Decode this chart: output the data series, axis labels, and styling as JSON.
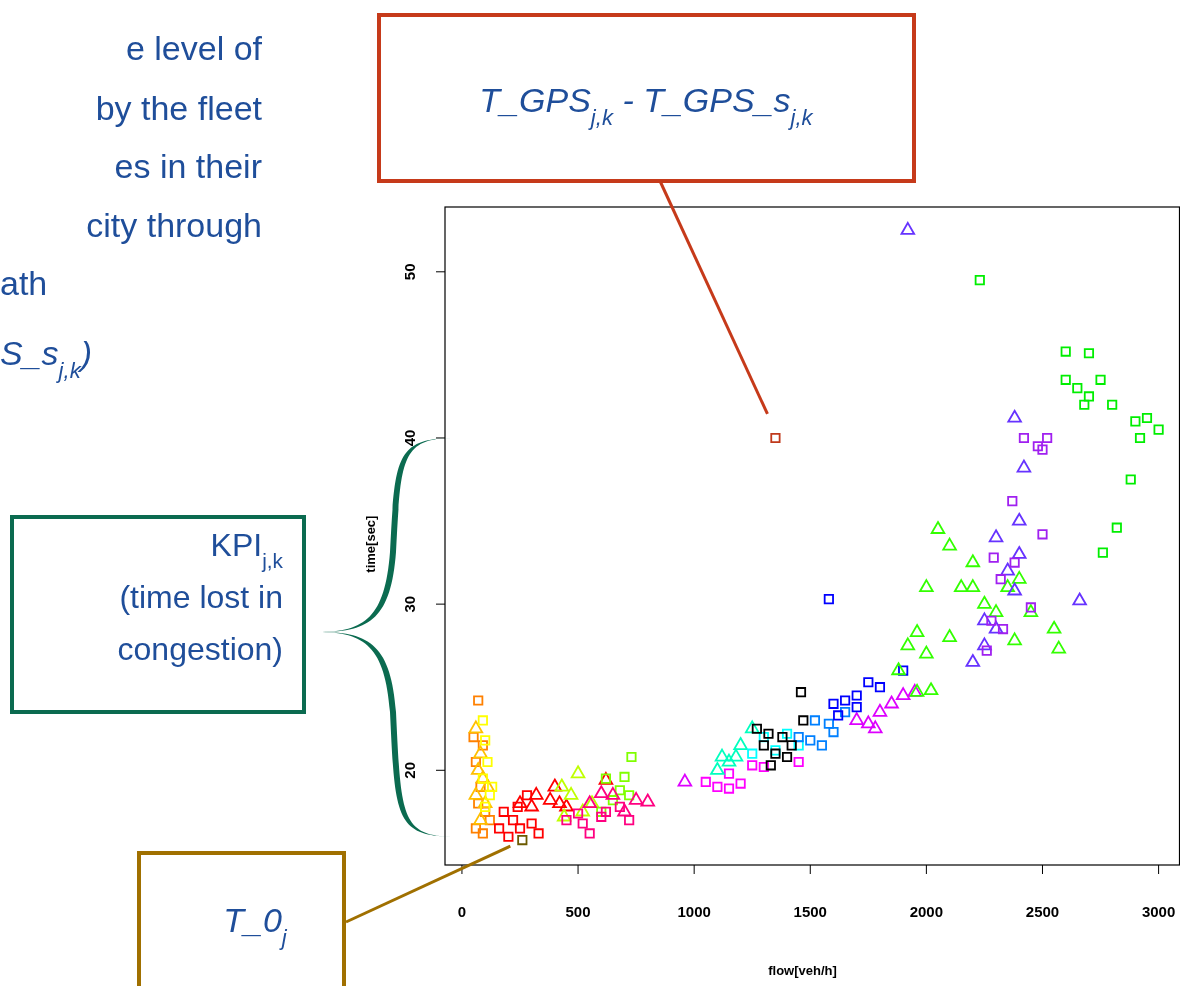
{
  "chart_data": {
    "type": "scatter",
    "xlabel": "flow[veh/h]",
    "ylabel": "time[sec]",
    "xlim": [
      -73,
      3090
    ],
    "ylim": [
      14.3,
      53.9
    ],
    "xticks": [
      0,
      500,
      1000,
      1500,
      2000,
      2500,
      3000
    ],
    "yticks": [
      20,
      30,
      40,
      50
    ],
    "series": [
      {
        "color": "#ff8000",
        "marker": "square",
        "x": [
          70,
          90,
          60,
          80,
          70,
          100,
          60,
          90,
          120,
          50
        ],
        "values": [
          24.2,
          21.5,
          20.5,
          19,
          18,
          17.5,
          16.5,
          16.2,
          17,
          22
        ]
      },
      {
        "color": "#ffbf00",
        "marker": "triangle",
        "x": [
          60,
          80,
          70,
          90,
          60,
          100,
          80,
          110
        ],
        "values": [
          22.5,
          21,
          20,
          19.5,
          18.5,
          18,
          17,
          19
        ]
      },
      {
        "color": "#ffff00",
        "marker": "square",
        "x": [
          90,
          100,
          110,
          90,
          120,
          100,
          130
        ],
        "values": [
          23,
          21.8,
          20.5,
          19.5,
          18.5,
          17.8,
          19
        ]
      },
      {
        "color": "#ff0000",
        "marker": "square",
        "x": [
          180,
          220,
          250,
          200,
          300,
          280,
          160,
          330,
          240
        ],
        "values": [
          17.5,
          17,
          16.5,
          16,
          16.8,
          18.5,
          16.5,
          16.2,
          17.8
        ]
      },
      {
        "color": "#ff0000",
        "marker": "triangle",
        "x": [
          320,
          380,
          420,
          300,
          400,
          620,
          250,
          450
        ],
        "values": [
          18.5,
          18.2,
          18,
          17.8,
          19,
          19.4,
          18,
          17.8
        ]
      },
      {
        "color": "#bfff00",
        "marker": "triangle",
        "x": [
          430,
          470,
          500,
          520,
          440,
          560
        ],
        "values": [
          19,
          18.5,
          19.8,
          17.5,
          17.2,
          18
        ]
      },
      {
        "color": "#80ff00",
        "marker": "square",
        "x": [
          620,
          700,
          730,
          680,
          650,
          720,
          600
        ],
        "values": [
          19.5,
          19.6,
          20.8,
          18.8,
          18.2,
          18.5,
          17.5
        ]
      },
      {
        "color": "#ff0080",
        "marker": "square",
        "x": [
          450,
          520,
          600,
          680,
          550,
          620,
          500,
          720
        ],
        "values": [
          17,
          16.8,
          17.2,
          17.8,
          16.2,
          17.5,
          17.4,
          17
        ]
      },
      {
        "color": "#ff0080",
        "marker": "triangle",
        "x": [
          650,
          750,
          800,
          550,
          700,
          600
        ],
        "values": [
          18.5,
          18.2,
          18.1,
          18,
          17.5,
          18.6
        ]
      },
      {
        "color": "#ff00ff",
        "marker": "square",
        "x": [
          1050,
          1100,
          1150,
          1200,
          1250,
          1300,
          1150,
          1450
        ],
        "values": [
          19.3,
          19,
          19.8,
          19.2,
          20.3,
          20.2,
          18.9,
          20.5
        ]
      },
      {
        "color": "#dd00ff",
        "marker": "triangle",
        "x": [
          960,
          1750,
          1800,
          1850,
          1700,
          1780,
          1900,
          1950
        ],
        "values": [
          19.3,
          22.8,
          23.5,
          24,
          23,
          22.5,
          24.5,
          24.7
        ]
      },
      {
        "color": "#00ffbf",
        "marker": "triangle",
        "x": [
          1100,
          1150,
          1200,
          1250,
          1180,
          1120
        ],
        "values": [
          20,
          20.5,
          21.5,
          22.5,
          20.8,
          20.8
        ]
      },
      {
        "color": "#00ffff",
        "marker": "square",
        "x": [
          1300,
          1350,
          1400,
          1250,
          1450
        ],
        "values": [
          22,
          21.2,
          22.2,
          21,
          21.5
        ]
      },
      {
        "color": "#0080ff",
        "marker": "square",
        "x": [
          1450,
          1500,
          1550,
          1600,
          1520,
          1650,
          1580
        ],
        "values": [
          22,
          21.8,
          21.5,
          22.3,
          23,
          23.5,
          22.8
        ]
      },
      {
        "color": "#0000ff",
        "marker": "square",
        "x": [
          1600,
          1650,
          1700,
          1750,
          1620,
          1580,
          1900,
          1700,
          1800
        ],
        "values": [
          24,
          24.2,
          24.5,
          25.3,
          23.3,
          30.3,
          26,
          23.8,
          25
        ]
      },
      {
        "color": "#000000",
        "marker": "square",
        "x": [
          1270,
          1300,
          1350,
          1380,
          1400,
          1330,
          1420,
          1460,
          1470,
          1320
        ],
        "values": [
          22.5,
          21.5,
          21,
          22,
          20.8,
          20.3,
          21.5,
          24.7,
          23,
          22.2
        ]
      },
      {
        "color": "#33ff00",
        "marker": "triangle",
        "x": [
          1880,
          1920,
          1960,
          2000,
          2050,
          2100,
          2000,
          2150,
          2200,
          2250,
          2300,
          2350,
          2400,
          2450,
          2550,
          2570,
          1960,
          2020,
          2100,
          2200,
          2380
        ],
        "values": [
          26,
          27.5,
          28.3,
          27,
          34.5,
          33.5,
          31,
          31,
          32.5,
          30,
          29.5,
          31,
          31.5,
          29.5,
          28.5,
          27.3,
          24.7,
          24.8,
          28,
          31,
          27.8
        ]
      },
      {
        "color": "#6633ff",
        "marker": "triangle",
        "x": [
          1920,
          2380,
          2420,
          2400,
          2300,
          2350,
          2400,
          2380,
          2250,
          2300,
          2660,
          2200,
          2250
        ],
        "values": [
          52.5,
          41.2,
          38.2,
          35,
          34,
          32,
          33,
          30.8,
          29,
          28.5,
          30.2,
          26.5,
          27.5
        ]
      },
      {
        "color": "#a020f0",
        "marker": "square",
        "x": [
          2370,
          2420,
          2480,
          2500,
          2520,
          2290,
          2380,
          2320,
          2280,
          2500,
          2260,
          2330,
          2450
        ],
        "values": [
          36.2,
          40,
          39.5,
          39.3,
          40,
          32.8,
          32.5,
          31.5,
          29,
          34.2,
          27.2,
          28.5,
          29.8
        ]
      },
      {
        "color": "#00ee00",
        "marker": "square",
        "x": [
          2230,
          2600,
          2700,
          2600,
          2650,
          2700,
          2750,
          2800,
          2680,
          2900,
          2950,
          3000,
          2920,
          2880,
          2820,
          2760
        ],
        "values": [
          49.5,
          45.2,
          45.1,
          43.5,
          43,
          42.5,
          43.5,
          42,
          42,
          41,
          41.2,
          40.5,
          40,
          37.5,
          34.6,
          33.1
        ]
      },
      {
        "color": "#c0391b",
        "marker": "square",
        "x": [
          1350
        ],
        "values": [
          40
        ]
      },
      {
        "color": "#6b5a00",
        "marker": "square",
        "x": [
          260
        ],
        "values": [
          15.8
        ]
      }
    ],
    "annotations": [
      "T_GPS$_{j,k}$ - T_GPS_s$_{j,k}$",
      "KPI$_{j,k}$\n(time lost in\ncongestion)",
      "T_0$_{j}$",
      "e level of",
      "by the fleet",
      "es in their",
      "city through",
      "ath",
      "S_s$_{j,k}$)"
    ]
  }
}
